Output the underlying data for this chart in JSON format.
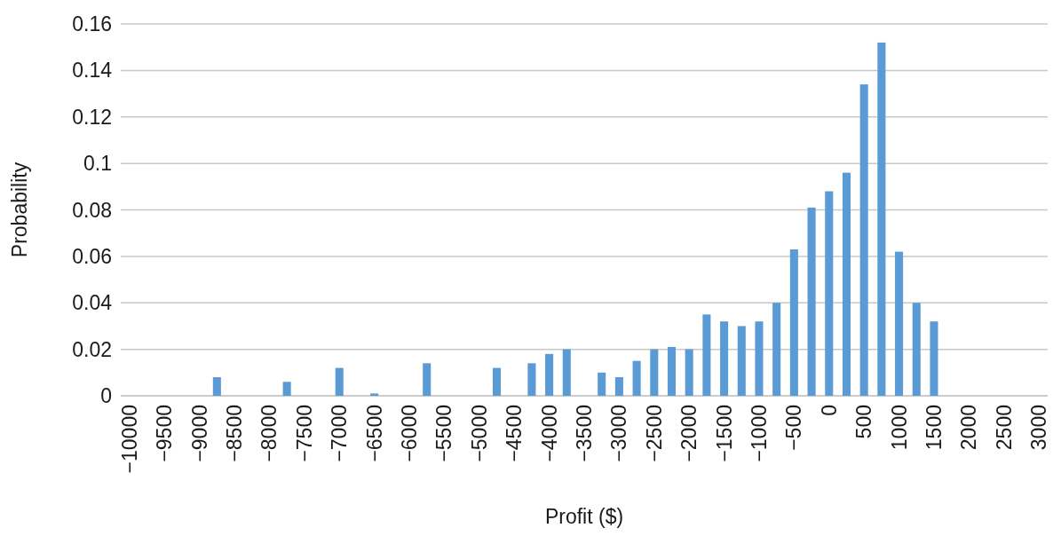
{
  "chart_data": {
    "type": "bar",
    "xlabel": "Profit ($)",
    "ylabel": "Probability",
    "categories": [
      "−10000",
      null,
      "−9500",
      null,
      "−9000",
      null,
      "−8500",
      null,
      "−8000",
      null,
      "−7500",
      null,
      "−7000",
      null,
      "−6500",
      null,
      "−6000",
      null,
      "−5500",
      null,
      "−5000",
      null,
      "−4500",
      null,
      "−4000",
      null,
      "−3500",
      null,
      "−3000",
      null,
      "−2500",
      null,
      "−2000",
      null,
      "−1500",
      null,
      "−1000",
      null,
      "−500",
      null,
      "0",
      null,
      "500",
      null,
      "1000",
      null,
      "1500",
      null,
      "2000",
      null,
      "2500",
      null,
      "3000"
    ],
    "values": [
      null,
      null,
      null,
      null,
      null,
      0.008,
      null,
      null,
      null,
      0.006,
      null,
      null,
      0.012,
      null,
      0.001,
      null,
      null,
      0.014,
      null,
      null,
      null,
      0.012,
      null,
      0.014,
      0.018,
      0.02,
      null,
      0.01,
      0.008,
      0.015,
      0.02,
      0.021,
      0.02,
      0.035,
      0.032,
      0.03,
      0.032,
      0.04,
      0.063,
      0.081,
      0.088,
      0.096,
      0.134,
      0.152,
      0.062,
      0.04,
      0.032,
      null,
      null,
      null,
      null,
      null,
      null
    ],
    "color": "#5b9bd5",
    "ylim": [
      0,
      0.16
    ],
    "yticks": [
      0,
      0.02,
      0.04,
      0.06,
      0.08,
      0.1,
      0.12,
      0.14,
      0.16
    ],
    "grid": "y"
  }
}
